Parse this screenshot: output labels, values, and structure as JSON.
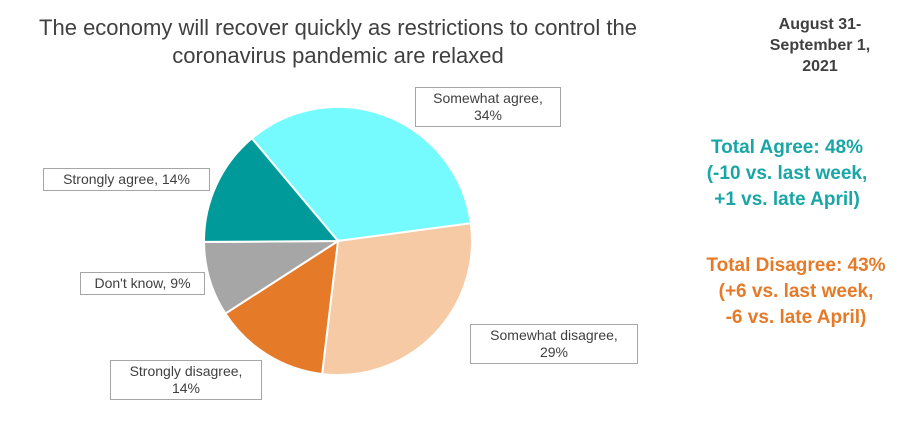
{
  "chart_data": {
    "type": "pie",
    "title": "The economy will recover quickly as restrictions to control the coronavirus pandemic are relaxed",
    "categories": [
      "Somewhat agree",
      "Somewhat disagree",
      "Strongly disagree",
      "Don't know",
      "Strongly agree"
    ],
    "values": [
      34,
      29,
      14,
      9,
      14
    ],
    "value_labels": [
      "Somewhat agree, 34%",
      "Somewhat disagree, 29%",
      "Strongly disagree, 14%",
      "Don't know, 9%",
      "Strongly agree, 14%"
    ],
    "colors": [
      "#75fbfd",
      "#f7caa6",
      "#e57a28",
      "#a6a6a6",
      "#009a9a"
    ],
    "date_lines": [
      "August 31-",
      "September 1,",
      "2021"
    ],
    "agree_lines": [
      "Total Agree: 48%",
      "(-10 vs. last week,",
      "+1 vs. late April)"
    ],
    "disagree_lines": [
      "Total Disagree: 43%",
      "(+6 vs. last week,",
      "-6 vs. late April)"
    ]
  }
}
